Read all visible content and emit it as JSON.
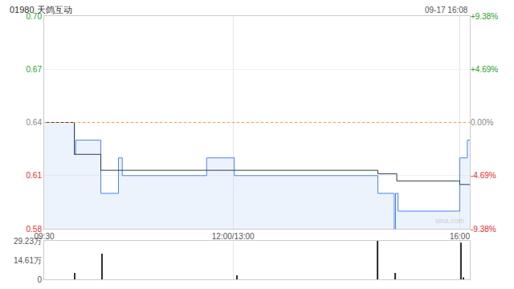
{
  "chart_data": [
    {
      "type": "line",
      "title": "01980 天鸽互动",
      "annotations": [
        "09-17 16:08",
        "sina.com"
      ],
      "xlim": [
        0,
        338
      ],
      "xticks": [
        {
          "value": 0,
          "label": "09:30"
        },
        {
          "value": 150,
          "label": "12:00/13:00"
        },
        {
          "value": 330,
          "label": "16:00"
        }
      ],
      "ylim": [
        0.58,
        0.7
      ],
      "yticks": [
        0.58,
        0.61,
        0.64,
        0.67,
        {
          "value": 0.7,
          "label": "0.70"
        }
      ],
      "y2lim": [
        -9.38,
        9.38
      ],
      "y2ticks": [
        {
          "value": -9.38,
          "label": "-9.38%"
        },
        {
          "value": -4.69,
          "label": "-4.69%"
        },
        {
          "value": 0,
          "label": "0.00%"
        },
        {
          "value": 4.69,
          "label": "+4.69%"
        },
        {
          "value": 9.38,
          "label": "+9.38%"
        }
      ],
      "reference": 0.64,
      "reference_color": "#f0a040",
      "grid": true,
      "series": [
        {
          "color": "#4a86e8",
          "line_style": "step",
          "x": [
            0,
            24,
            25,
            45,
            59,
            62,
            129,
            151,
            265,
            278,
            279,
            281,
            330,
            336,
            338
          ],
          "values": [
            0.64,
            0.622,
            0.63,
            0.6,
            0.62,
            0.61,
            0.62,
            0.61,
            0.6,
            0.58,
            0.6,
            0.59,
            0.62,
            0.63,
            0.63
          ]
        },
        {
          "color": "#2f3f4f",
          "line_style": "step",
          "x": [
            0,
            24,
            45,
            265,
            280,
            330,
            338
          ],
          "values": [
            0.64,
            0.622,
            0.613,
            0.611,
            0.607,
            0.605,
            0.605
          ]
        }
      ]
    },
    {
      "type": "bar",
      "xlim": [
        0,
        338
      ],
      "xticks": [
        {
          "value": 0,
          "label": "09:30"
        },
        {
          "value": 150,
          "label": "12:00/13:00"
        },
        {
          "value": 330,
          "label": "16:00"
        }
      ],
      "tick_labels": "y",
      "ylim": [
        0,
        292300
      ],
      "yticks": [
        0,
        {
          "value": 146100,
          "label": "14.61万"
        },
        {
          "value": 292300,
          "label": "29.23万"
        }
      ],
      "color": "#333333",
      "x": [
        24,
        46,
        153,
        265,
        279,
        331,
        333
      ],
      "values": [
        49000,
        195000,
        30000,
        292300,
        49000,
        280000,
        15000
      ]
    }
  ]
}
